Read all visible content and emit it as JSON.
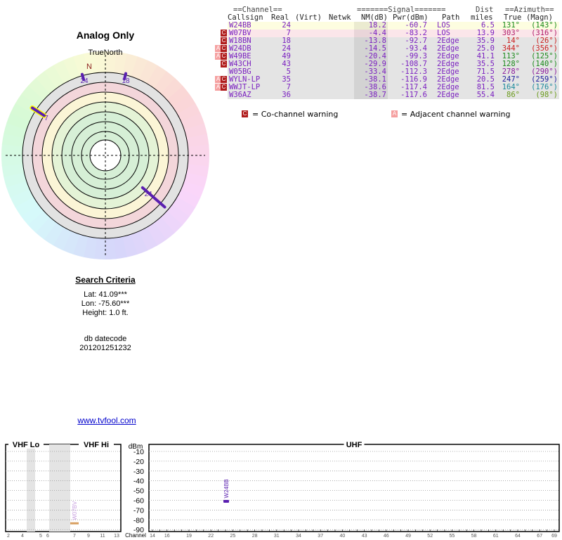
{
  "title": "Analog Only",
  "compass": {
    "true_north_label": "TrueNorth",
    "north_letter": "N"
  },
  "markers": [
    {
      "label": "24",
      "azimuth": 344,
      "color": "#5a1fb0"
    },
    {
      "label": "18",
      "azimuth": 14,
      "color": "#5a1fb0"
    },
    {
      "label": "7",
      "azimuth": 303,
      "color": "#5a1fb0",
      "highlight": "#ffff00"
    },
    {
      "label": "24",
      "azimuth": 131,
      "color": "#5a1fb0"
    }
  ],
  "search_criteria": {
    "heading": "Search Criteria",
    "lat": "Lat: 41.09***",
    "lon": "Lon: -75.60***",
    "height": "Height: 1.0 ft.",
    "datecode_label": "db datecode",
    "datecode": "201201251232"
  },
  "link": "www.tvfool.com",
  "table": {
    "group_headers": {
      "channel": "==Channel==",
      "signal": "=======Signal=======",
      "dist": "Dist",
      "azimuth": "==Azimuth=="
    },
    "headers": [
      "Callsign",
      "Real",
      "(Virt)",
      "Netwk",
      "NM(dB)",
      "Pwr(dBm)",
      "Path",
      "miles",
      "True",
      "(Magn)"
    ],
    "rows": [
      {
        "callsign": "W24BB",
        "real": "24",
        "nm": "18.2",
        "pwr": "-60.7",
        "path": "LOS",
        "dist": "6.5",
        "true_az": "131°",
        "magn": "(143°)",
        "warn": "",
        "bg": "#fdfde0",
        "az_color": "#1b8a1b"
      },
      {
        "callsign": "W07BV",
        "real": "7",
        "nm": "-4.4",
        "pwr": "-83.2",
        "path": "LOS",
        "dist": "13.9",
        "true_az": "303°",
        "magn": "(316°)",
        "warn": "C",
        "bg": "#fbe6ea",
        "az_color": "#b01c6a"
      },
      {
        "callsign": "W18BN",
        "real": "18",
        "nm": "-13.8",
        "pwr": "-92.7",
        "path": "2Edge",
        "dist": "35.9",
        "true_az": "14°",
        "magn": "(26°)",
        "warn": "C",
        "bg": "#e4e4e4",
        "az_color": "#cc2020"
      },
      {
        "callsign": "W24DB",
        "real": "24",
        "nm": "-14.5",
        "pwr": "-93.4",
        "path": "2Edge",
        "dist": "25.0",
        "true_az": "344°",
        "magn": "(356°)",
        "warn": "CA",
        "bg": "#e4e4e4",
        "az_color": "#cc2020"
      },
      {
        "callsign": "W49BE",
        "real": "49",
        "nm": "-20.4",
        "pwr": "-99.3",
        "path": "2Edge",
        "dist": "41.1",
        "true_az": "113°",
        "magn": "(125°)",
        "warn": "CA",
        "bg": "#e4e4e4",
        "az_color": "#1b8a1b"
      },
      {
        "callsign": "W43CH",
        "real": "43",
        "nm": "-29.9",
        "pwr": "-108.7",
        "path": "2Edge",
        "dist": "35.5",
        "true_az": "128°",
        "magn": "(140°)",
        "warn": "C",
        "bg": "#e4e4e4",
        "az_color": "#1b8a1b"
      },
      {
        "callsign": "W05BG",
        "real": "5",
        "nm": "-33.4",
        "pwr": "-112.3",
        "path": "2Edge",
        "dist": "71.5",
        "true_az": "278°",
        "magn": "(290°)",
        "warn": "",
        "bg": "#e4e4e4",
        "az_color": "#8a1b9c"
      },
      {
        "callsign": "WYLN-LP",
        "real": "35",
        "nm": "-38.1",
        "pwr": "-116.9",
        "path": "2Edge",
        "dist": "20.5",
        "true_az": "247°",
        "magn": "(259°)",
        "warn": "CA",
        "bg": "#e4e4e4",
        "az_color": "#1b1b9c"
      },
      {
        "callsign": "WWJT-LP",
        "real": "7",
        "nm": "-38.6",
        "pwr": "-117.4",
        "path": "2Edge",
        "dist": "81.5",
        "true_az": "164°",
        "magn": "(176°)",
        "warn": "CA",
        "bg": "#e4e4e4",
        "az_color": "#1b8a9c"
      },
      {
        "callsign": "W36AZ",
        "real": "36",
        "nm": "-38.7",
        "pwr": "-117.6",
        "path": "2Edge",
        "dist": "55.4",
        "true_az": "86°",
        "magn": "(98°)",
        "warn": "",
        "bg": "#e4e4e4",
        "az_color": "#6a9a1b"
      }
    ],
    "legend": {
      "co_symbol": "C",
      "co_label": "= Co-channel warning",
      "adj_symbol": "A",
      "adj_label": "= Adjacent channel warning"
    },
    "colors": {
      "callsign": "#7a1fc0",
      "warn_co": "#b01c1c",
      "warn_adj": "#f5a0a0"
    }
  },
  "spectrum": {
    "sections": [
      "VHF Lo",
      "VHF Hi",
      "UHF"
    ],
    "dbm_label": "dBm",
    "dbm_ticks": [
      "-10",
      "-20",
      "-30",
      "-40",
      "-50",
      "-60",
      "-70",
      "-80",
      "-90"
    ],
    "channel_label": "Channel",
    "vhf_lo_ticks": [
      "2",
      "4",
      "5",
      "6"
    ],
    "vhf_hi_ticks": [
      "7",
      "9",
      "11",
      "13"
    ],
    "uhf_ticks": [
      "14",
      "16",
      "19",
      "22",
      "25",
      "28",
      "31",
      "34",
      "37",
      "40",
      "43",
      "46",
      "49",
      "52",
      "55",
      "58",
      "61",
      "64",
      "67",
      "69"
    ],
    "bars": [
      {
        "label": "W24BB",
        "channel": 24,
        "dbm": -60.7,
        "color": "#5a1fb0"
      },
      {
        "label": "W07BV",
        "channel": 7,
        "dbm": -83.2,
        "color": "#d8a060"
      }
    ]
  }
}
